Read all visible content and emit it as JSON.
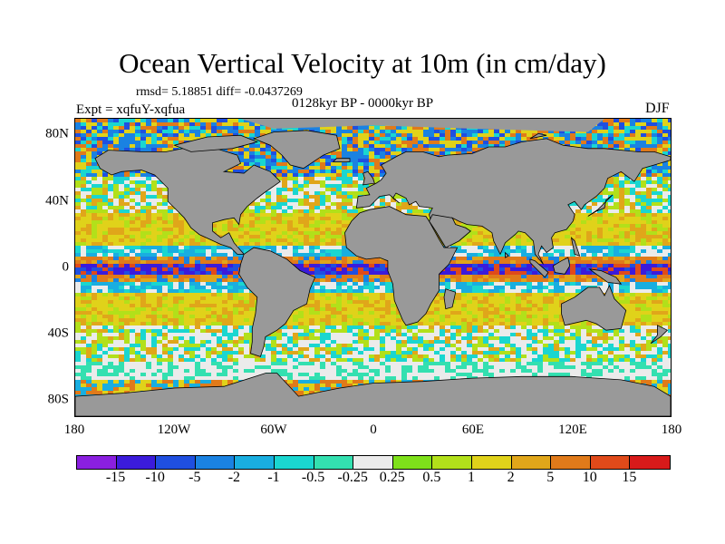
{
  "header": {
    "title": "Ocean Vertical Velocity at 10m (in cm/day)",
    "stats": "rmsd= 5.18851 diff= -0.0437269",
    "period": "0128kyr BP - 0000kyr BP",
    "experiment": "Expt = xqfuY-xqfua",
    "season": "DJF"
  },
  "axes": {
    "lat_labels": [
      "80N",
      "40N",
      "0",
      "40S",
      "80S"
    ],
    "lon_labels": [
      "180",
      "120W",
      "60W",
      "0",
      "60E",
      "120E",
      "180"
    ]
  },
  "colorbar": {
    "labels": [
      "-15",
      "-10",
      "-5",
      "-2",
      "-1",
      "-0.5",
      "-0.25",
      "0.25",
      "0.5",
      "1",
      "2",
      "5",
      "10",
      "15"
    ],
    "colors": [
      "#8a1fe0",
      "#3b1bdb",
      "#1f4fe0",
      "#1a82e2",
      "#19aee0",
      "#1ad6d0",
      "#33e0b0",
      "#ebebeb",
      "#7ee01a",
      "#b2e01a",
      "#e0d21a",
      "#e0a61a",
      "#e07a1a",
      "#e04a1a",
      "#d81a1a"
    ]
  },
  "map": {
    "land_color": "#999999",
    "ocean_background": "#ffffff"
  }
}
